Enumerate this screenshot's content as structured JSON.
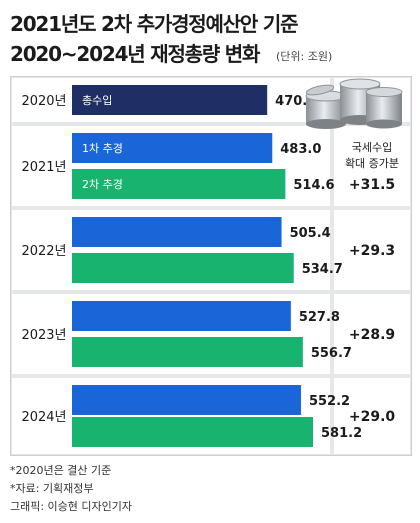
{
  "title_line1": "2021년도 2차 추가경정예산안 기준",
  "title_line2": "2020~2024년 재정총량 변화",
  "unit": "(단위: 조원)",
  "colors": {
    "navy": "#1f2f66",
    "blue": "#1a66d8",
    "green": "#17b36f",
    "panel": "#e6e7e8",
    "row_bg": "#ffffff"
  },
  "increase_header": [
    "국세수입",
    "확대 증가분"
  ],
  "footnotes": [
    "*2020년은 결산 기준",
    "*자료: 기획재정부",
    "그래픽: 이승현 디자인기자"
  ],
  "chart_data": {
    "type": "bar",
    "orientation": "horizontal",
    "title": "2021년도 2차 추가경정예산안 기준 2020~2024년 재정총량 변화",
    "unit": "조원",
    "categories": [
      "2020년",
      "2021년",
      "2022년",
      "2023년",
      "2024년"
    ],
    "series": [
      {
        "name": "총수입",
        "values": [
          470.7,
          null,
          null,
          null,
          null
        ]
      },
      {
        "name": "1차 추경",
        "values": [
          null,
          483.0,
          505.4,
          527.8,
          552.2
        ]
      },
      {
        "name": "2차 추경",
        "values": [
          null,
          514.6,
          534.7,
          556.7,
          581.2
        ]
      }
    ],
    "bar_labels": [
      {
        "text": "총수입",
        "year": "2020년",
        "series": "총수입"
      },
      {
        "text": "1차 추경",
        "year": "2021년",
        "series": "1차 추경"
      },
      {
        "text": "2차 추경",
        "year": "2021년",
        "series": "2차 추경"
      }
    ],
    "value_labels": [
      "470.7",
      "483.0",
      "514.6",
      "505.4",
      "534.7",
      "527.8",
      "556.7",
      "552.2",
      "581.2"
    ],
    "increase": [
      "",
      "+31.5",
      "+29.3",
      "+28.9",
      "+29.0"
    ],
    "xlim": [
      0,
      581.2
    ],
    "grid": false,
    "legend": "none"
  }
}
